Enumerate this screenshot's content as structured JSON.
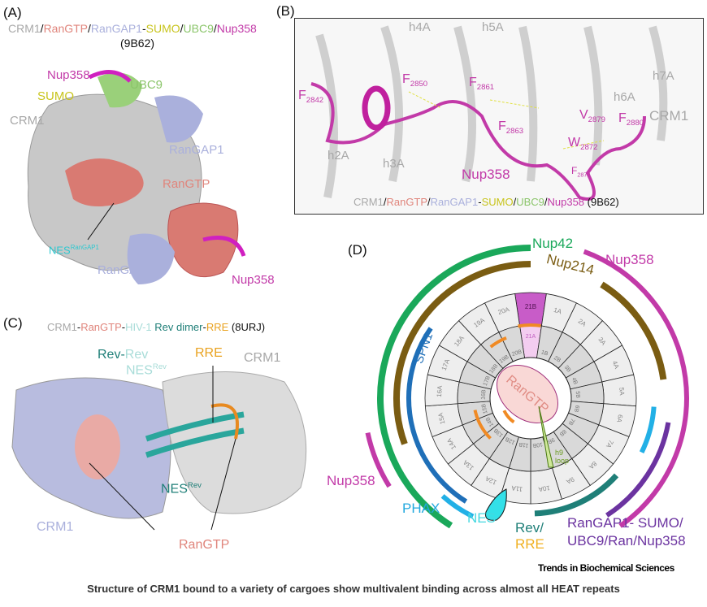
{
  "panel_a": {
    "label": "(A)",
    "title_parts": [
      "CRM1",
      "/",
      "RanGTP",
      "/",
      "RanGAP1",
      "-",
      "SUMO",
      "/",
      "UBC9",
      "/",
      "Nup358"
    ],
    "pdb": "(9B62)",
    "labels": {
      "nup358_top": "Nup358",
      "ubc9": "UBC9",
      "sumo": "SUMO",
      "crm1": "CRM1",
      "rangap1_top": "RanGAP1",
      "rangtp": "RanGTP",
      "nes": "NES",
      "nes_sup": "RanGAP1",
      "rangap1_bottom": "RanGAP1",
      "nup358_bottom": "Nup358"
    }
  },
  "panel_b": {
    "label": "(B)",
    "helices": [
      "h4A",
      "h5A",
      "h7A",
      "h6A",
      "h2A",
      "h3A"
    ],
    "residues": [
      {
        "aa": "F",
        "num": "2842"
      },
      {
        "aa": "F",
        "num": "2850"
      },
      {
        "aa": "F",
        "num": "2861"
      },
      {
        "aa": "F",
        "num": "2863"
      },
      {
        "aa": "V",
        "num": "2879"
      },
      {
        "aa": "F",
        "num": "2880"
      },
      {
        "aa": "W",
        "num": "2872"
      },
      {
        "aa": "F",
        "num": "2870"
      }
    ],
    "crm1": "CRM1",
    "nup358": "Nup358",
    "caption_parts": [
      "CRM1",
      "/",
      "RanGTP",
      "/",
      "RanGAP1",
      "-",
      "SUMO",
      "/",
      "UBC9",
      "/",
      "Nup358"
    ],
    "pdb": " (9B62)"
  },
  "panel_c": {
    "label": "(C)",
    "title_parts": [
      "CRM1",
      "-",
      "RanGTP",
      "-",
      "HIV-1",
      "Rev dimer",
      "-",
      "RRE"
    ],
    "pdb": " (8URJ)",
    "labels": {
      "rev1": "Rev",
      "dash": "-",
      "rev2": "Rev",
      "nes_rev_top": "NES",
      "sup": "Rev",
      "rre": "RRE",
      "crm1_right": "CRM1",
      "crm1_left": "CRM1",
      "nes_rev_bottom": "NES",
      "rangtp": "RanGTP"
    }
  },
  "panel_d": {
    "label": "(D)",
    "outer_repeats": [
      "21B",
      "1A",
      "2A",
      "3A",
      "4A",
      "5A",
      "6A",
      "7A",
      "8A",
      "9A",
      "10A",
      "11A",
      "12A",
      "13A",
      "14A",
      "15A",
      "16A",
      "17A",
      "18A",
      "19A",
      "20A"
    ],
    "inner_repeats": [
      "21A",
      "1B",
      "2B",
      "3B",
      "4B",
      "5B",
      "6B",
      "7B",
      "8B",
      "9B",
      "10B",
      "11B",
      "12B",
      "13B",
      "14B",
      "15B",
      "16B",
      "17B",
      "18B",
      "19B",
      "20B"
    ],
    "center": "RanGTP",
    "loop": [
      "h9",
      "loop"
    ],
    "cargo_labels": {
      "nup42": "Nup42",
      "nup214": "Nup214",
      "nup358_right": "Nup358",
      "spn1": "SPN1",
      "nup358_left": "Nup358",
      "phax": "PHAX",
      "nes": "NES",
      "rev": "Rev/",
      "rre": "RRE",
      "rangap_line1": "RanGAP1- SUMO/",
      "rangap_line2": "UBC9/Ran/Nup358"
    },
    "colors": {
      "nup42": "#1aa85a",
      "nup214": "#7a5c12",
      "nup358": "#c23aa8",
      "spn1": "#1f6fb8",
      "phax": "#22b0e6",
      "rev": "#1f7f78",
      "rre": "#f08a24",
      "rangap": "#6b33a0",
      "nes": "#33e0e8"
    }
  },
  "journal": "Trends in Biochemical Sciences",
  "caption": "Structure of CRM1 bound to a variety of cargoes show multivalent binding across almost all HEAT repeats"
}
